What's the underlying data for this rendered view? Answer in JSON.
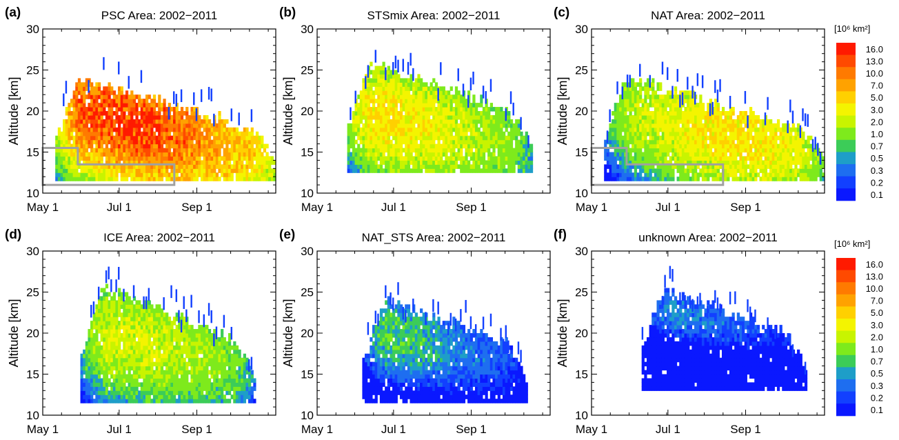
{
  "figure": {
    "colorbar": {
      "unit_label": "[10⁶ km²]",
      "levels": [
        "16.0",
        "13.0",
        "10.0",
        "7.0",
        "5.0",
        "3.0",
        "2.0",
        "1.0",
        "0.7",
        "0.5",
        "0.3",
        "0.2",
        "0.1"
      ],
      "colors": [
        "#ff1a00",
        "#ff4a00",
        "#ff7a00",
        "#ffa200",
        "#ffd000",
        "#f4f400",
        "#c8f400",
        "#7eea1c",
        "#3ccc58",
        "#1e9ec8",
        "#1e6ef0",
        "#1240ff",
        "#0a18ff"
      ]
    }
  },
  "chart_data": [
    {
      "type": "heatmap",
      "panel": "(a)",
      "title": "PSC Area:  2002−2011",
      "ylabel": "Altitude [km]",
      "xlabel": "",
      "xticks": [
        "May 1",
        "Jul 1",
        "Sep 1"
      ],
      "xtick_day": [
        0,
        61,
        123
      ],
      "xlim_days": [
        0,
        186
      ],
      "yticks": [
        10,
        15,
        20,
        25,
        30
      ],
      "ylim": [
        10,
        30
      ],
      "peak_value": 16.0,
      "shape": {
        "start": 10,
        "end": 186,
        "top0": 24,
        "top1": 16,
        "bottom": 11.5,
        "cz0": 20.5,
        "cz1": 14,
        "cday": 68,
        "spread": 6
      }
    },
    {
      "type": "heatmap",
      "panel": "(b)",
      "title": "STSmix Area:  2002−2011",
      "ylabel": "Altitude [km]",
      "xlabel": "",
      "xticks": [
        "May 1",
        "Jul 1",
        "Sep 1"
      ],
      "xtick_day": [
        0,
        61,
        123
      ],
      "xlim_days": [
        0,
        186
      ],
      "yticks": [
        10,
        15,
        20,
        25,
        30
      ],
      "ylim": [
        10,
        30
      ],
      "peak_value": 5.0,
      "shape": {
        "start": 24,
        "end": 172,
        "top0": 26,
        "top1": 18,
        "bottom": 12.5,
        "cz0": 20,
        "cz1": 15,
        "cday": 50,
        "spread": 6
      }
    },
    {
      "type": "heatmap",
      "panel": "(c)",
      "title": "NAT Area:  2002−2011",
      "ylabel": "Altitude [km]",
      "xlabel": "",
      "xticks": [
        "May 1",
        "Jul 1",
        "Sep 1"
      ],
      "xtick_day": [
        0,
        61,
        123
      ],
      "xlim_days": [
        0,
        186
      ],
      "yticks": [
        10,
        15,
        20,
        25,
        30
      ],
      "ylim": [
        10,
        30
      ],
      "peak_value": 5.0,
      "shape": {
        "start": 10,
        "end": 186,
        "top0": 24,
        "top1": 16,
        "bottom": 11.5,
        "cz0": 20,
        "cz1": 14.5,
        "cday": 110,
        "spread": 6
      }
    },
    {
      "type": "heatmap",
      "panel": "(d)",
      "title": "ICE Area:  2002−2011",
      "ylabel": "Altitude [km]",
      "xlabel": "",
      "xticks": [
        "May 1",
        "Jul 1",
        "Sep 1"
      ],
      "xtick_day": [
        0,
        61,
        123
      ],
      "xlim_days": [
        0,
        186
      ],
      "yticks": [
        10,
        15,
        20,
        25,
        30
      ],
      "ylim": [
        10,
        30
      ],
      "peak_value": 3.0,
      "shape": {
        "start": 30,
        "end": 170,
        "top0": 26,
        "top1": 17,
        "bottom": 11.5,
        "cz0": 20,
        "cz1": 16,
        "cday": 72,
        "spread": 6
      }
    },
    {
      "type": "heatmap",
      "panel": "(e)",
      "title": "NAT_STS Area:  2002−2011",
      "ylabel": "Altitude [km]",
      "xlabel": "",
      "xticks": [
        "May 1",
        "Jul 1",
        "Sep 1"
      ],
      "xtick_day": [
        0,
        61,
        123
      ],
      "xlim_days": [
        0,
        186
      ],
      "yticks": [
        10,
        15,
        20,
        25,
        30
      ],
      "ylim": [
        10,
        30
      ],
      "peak_value": 1.0,
      "shape": {
        "start": 36,
        "end": 168,
        "top0": 24,
        "top1": 17,
        "bottom": 11.5,
        "cz0": 20.5,
        "cz1": 16,
        "cday": 40,
        "spread": 5
      }
    },
    {
      "type": "heatmap",
      "panel": "(f)",
      "title": "unknown Area:  2002−2011",
      "ylabel": "Altitude [km]",
      "xlabel": "",
      "xticks": [
        "May 1",
        "Jul 1",
        "Sep 1"
      ],
      "xtick_day": [
        0,
        61,
        123
      ],
      "xlim_days": [
        0,
        186
      ],
      "yticks": [
        10,
        15,
        20,
        25,
        30
      ],
      "ylim": [
        10,
        30
      ],
      "peak_value": 0.5,
      "shape": {
        "start": 40,
        "end": 172,
        "top0": 25.5,
        "top1": 18,
        "bottom": 13,
        "cz0": 23,
        "cz1": 19,
        "cday": 60,
        "spread": 3
      }
    }
  ]
}
